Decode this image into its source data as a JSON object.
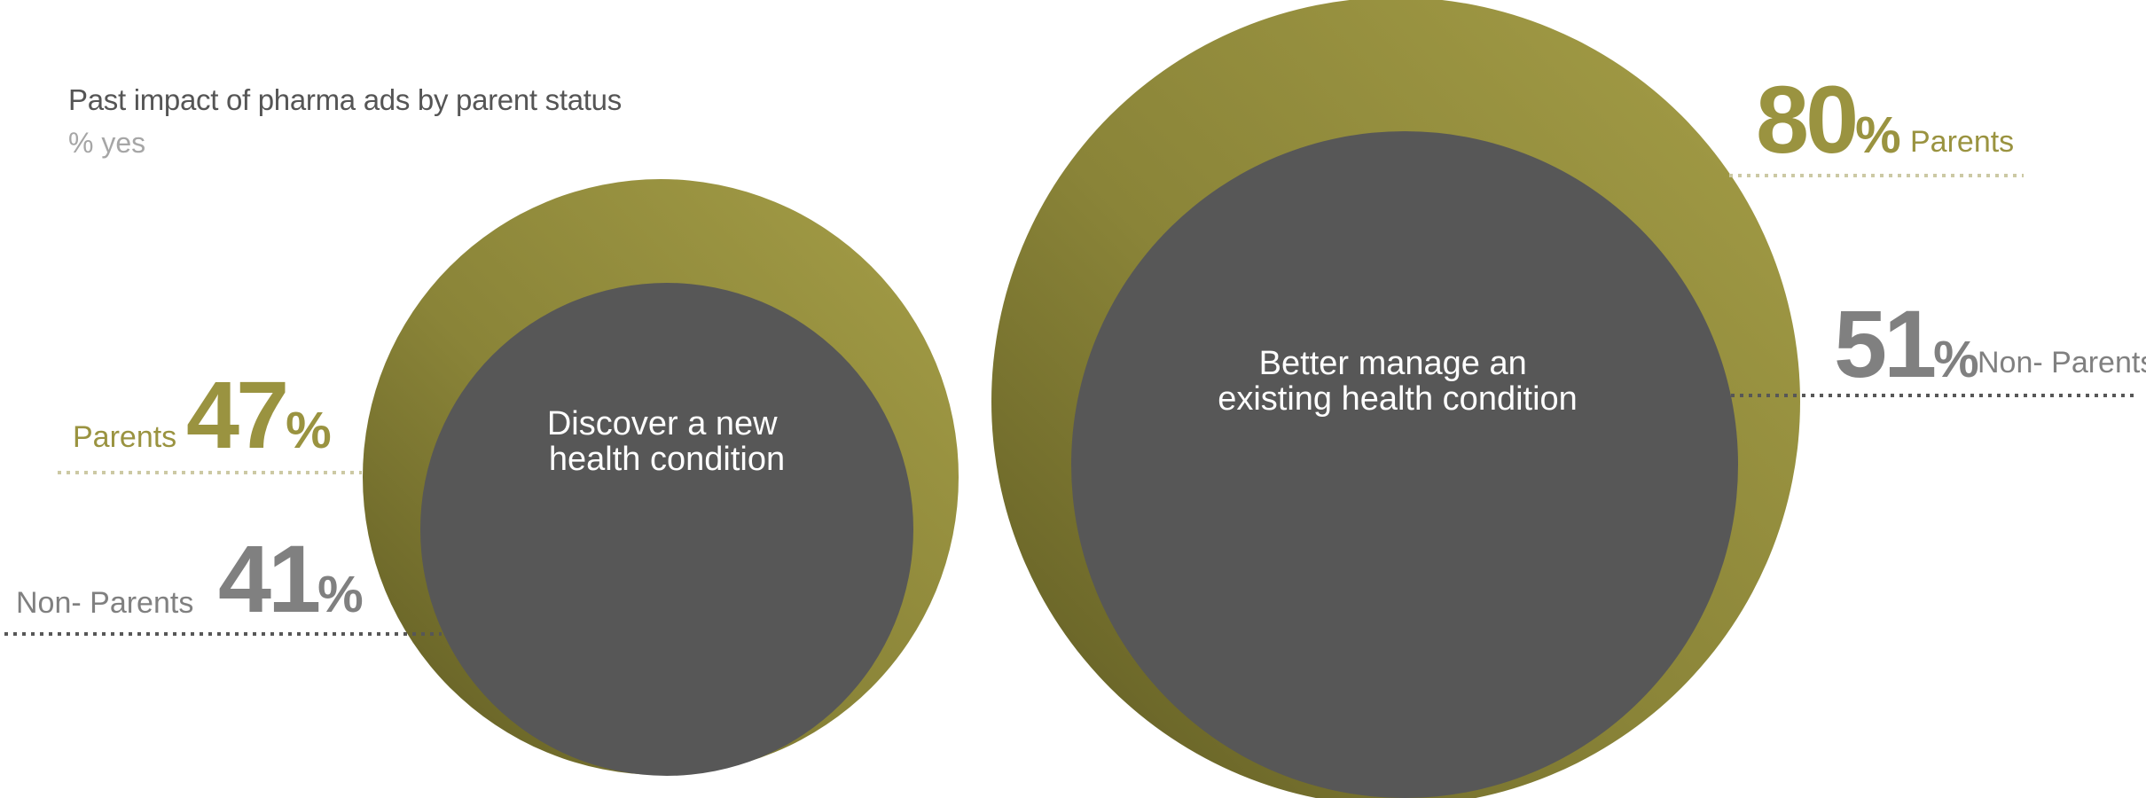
{
  "chart_data": {
    "type": "nested-bubble",
    "title": "Past impact of pharma ads by parent status",
    "subtitle": "% yes",
    "unit": "%",
    "colors": {
      "Parents": "#9a9340",
      "Non- Parents": "#575757"
    },
    "series": [
      {
        "name": "Parents",
        "values": [
          47,
          80
        ]
      },
      {
        "name": "Non- Parents",
        "values": [
          41,
          51
        ]
      }
    ],
    "categories": [
      {
        "label_lines": [
          "Discover a new",
          "health condition"
        ]
      },
      {
        "label_lines": [
          "Better manage an",
          "existing health condition"
        ]
      }
    ]
  }
}
